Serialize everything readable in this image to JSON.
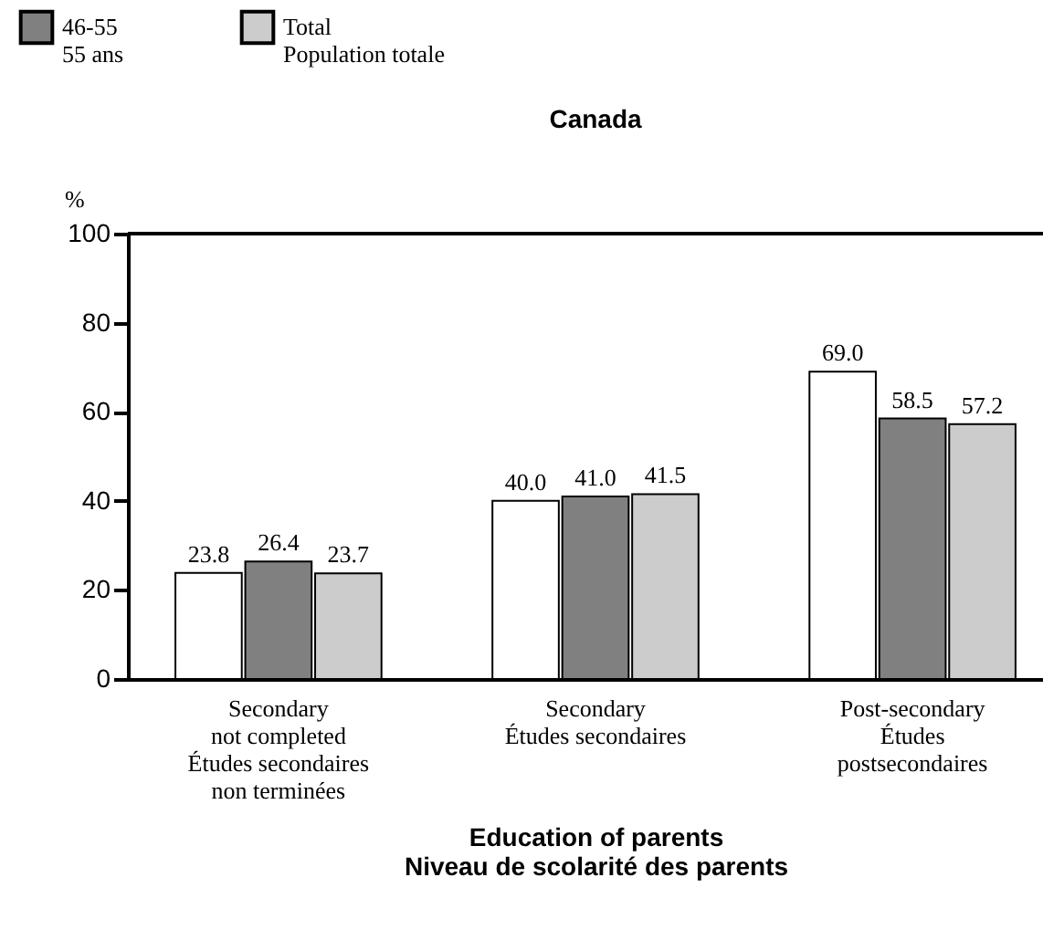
{
  "chart_data": {
    "type": "bar",
    "title": "Canada",
    "xlabel": "Education of parents\nNiveau de scolarité des parents",
    "ylabel": "%",
    "categories": [
      "Secondary\nnot completed\nÉtudes secondaires\nnon terminées",
      "Secondary\nÉtudes secondaires",
      "Post-secondary\nÉtudes\npostsecondaires"
    ],
    "series": [
      {
        "color": "#ffffff",
        "values": [
          23.8,
          40.0,
          69.0
        ],
        "value_labels": [
          "23.8",
          "40.0",
          "69.0"
        ]
      },
      {
        "name": "46-55\n55 ans",
        "color": "#808080",
        "values": [
          26.4,
          41.0,
          58.5
        ],
        "value_labels": [
          "26.4",
          "41.0",
          "58.5"
        ]
      },
      {
        "name": "Total\nPopulation totale",
        "color": "#cccccc",
        "values": [
          23.7,
          41.5,
          57.2
        ],
        "value_labels": [
          "23.7",
          "41.5",
          "57.2"
        ]
      }
    ],
    "ylim": [
      0,
      100
    ],
    "yticks": [
      0,
      20,
      40,
      60,
      80,
      100
    ],
    "grid": false,
    "legend": "top left"
  }
}
